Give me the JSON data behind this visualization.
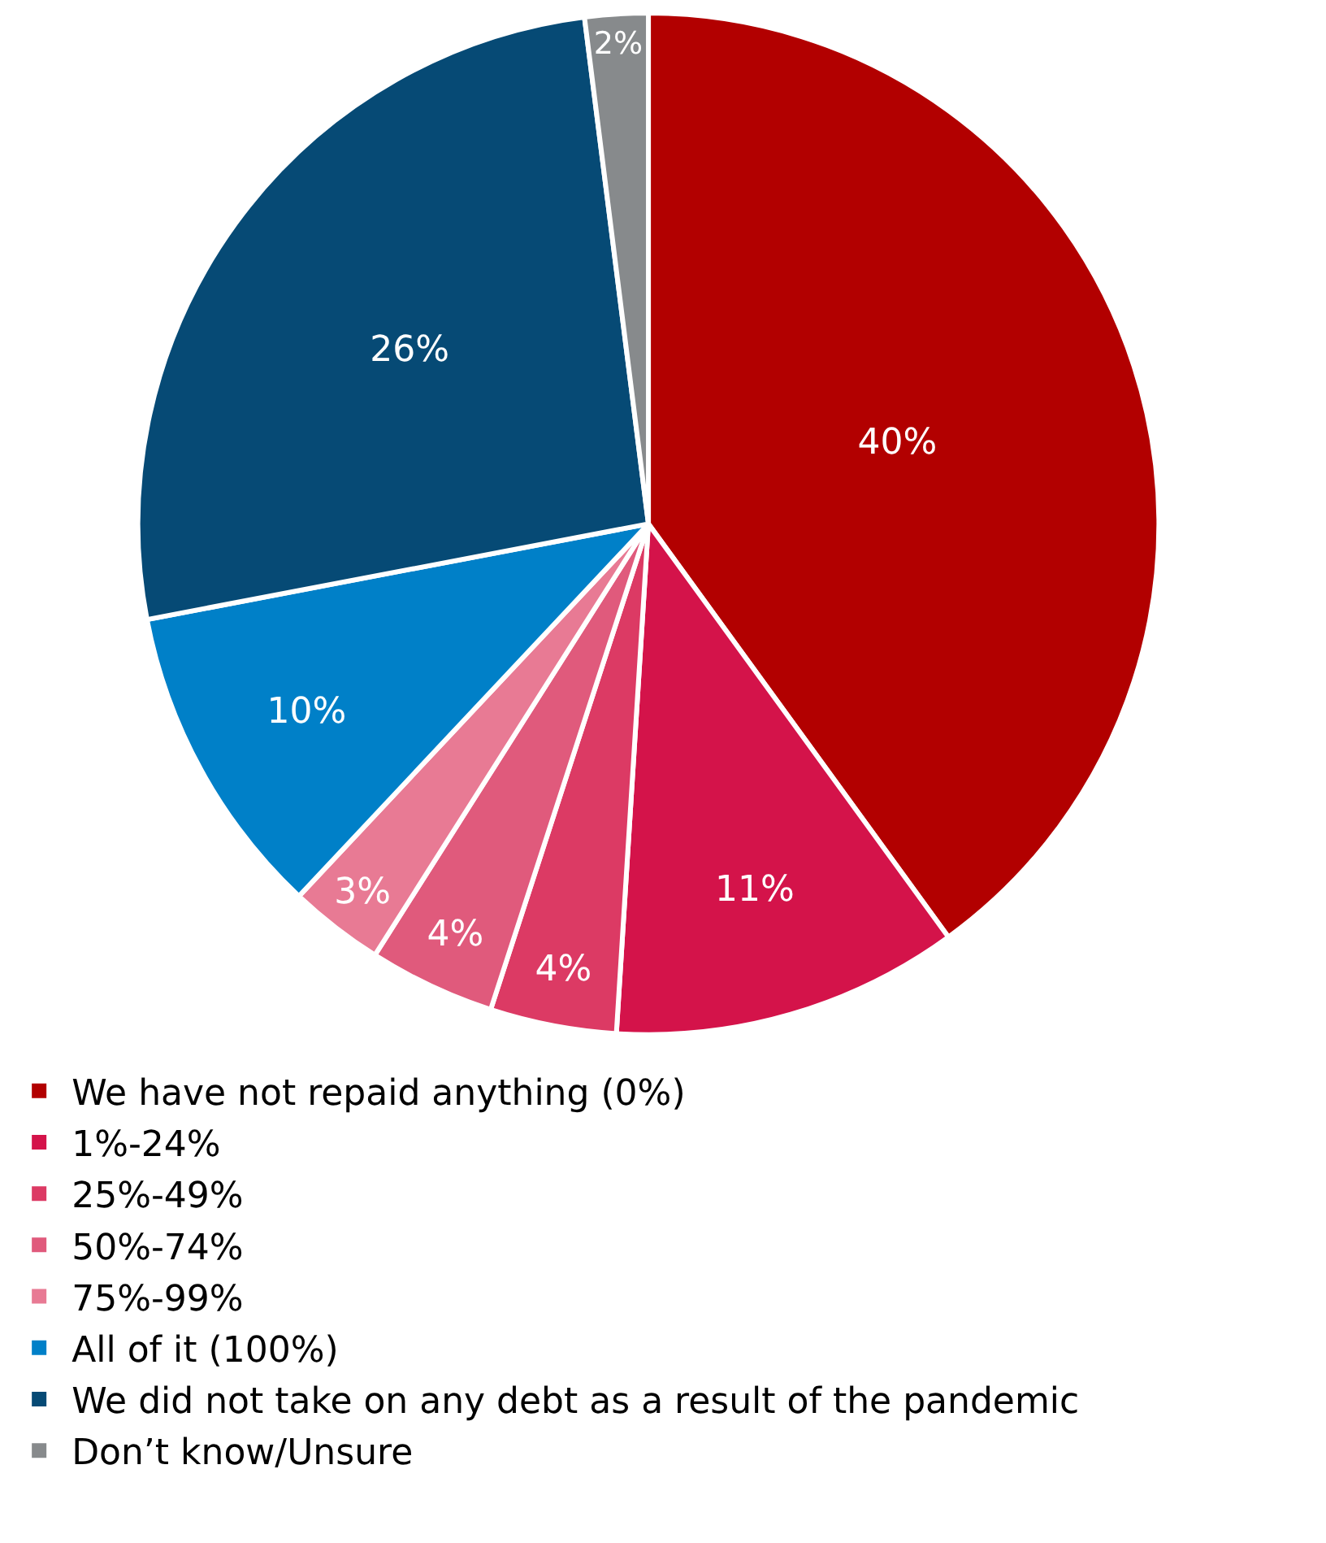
{
  "chart_data": {
    "type": "pie",
    "categories": [
      "We have not repaid anything (0%)",
      "1%-24%",
      "25%-49%",
      "50%-74%",
      "75%-99%",
      "All of it (100%)",
      "We did not take on any debt as a result of the pandemic",
      "Don’t know/Unsure"
    ],
    "values": [
      40,
      11,
      4,
      4,
      3,
      10,
      26,
      2
    ],
    "value_labels": [
      "40%",
      "11%",
      "4%",
      "4%",
      "3%",
      "10%",
      "26%",
      "2%"
    ],
    "colors": [
      "#b20000",
      "#d4134a",
      "#dc3a64",
      "#e05a7c",
      "#e87a94",
      "#0080c8",
      "#064a75",
      "#878a8c"
    ],
    "legend": "bottom"
  }
}
